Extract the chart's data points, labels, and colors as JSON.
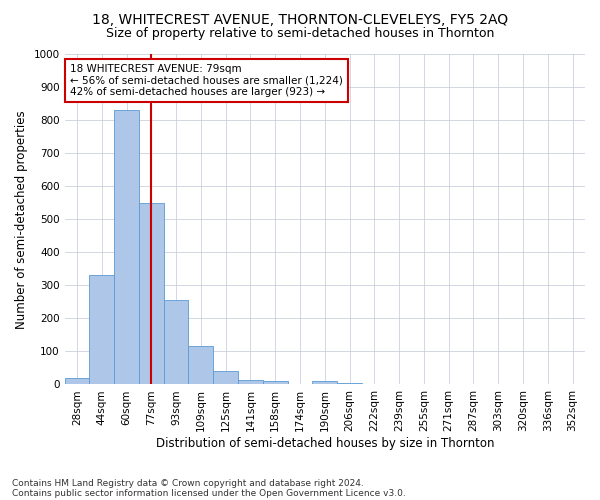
{
  "title": "18, WHITECREST AVENUE, THORNTON-CLEVELEYS, FY5 2AQ",
  "subtitle": "Size of property relative to semi-detached houses in Thornton",
  "xlabel": "Distribution of semi-detached houses by size in Thornton",
  "ylabel": "Number of semi-detached properties",
  "categories": [
    "28sqm",
    "44sqm",
    "60sqm",
    "77sqm",
    "93sqm",
    "109sqm",
    "125sqm",
    "141sqm",
    "158sqm",
    "174sqm",
    "190sqm",
    "206sqm",
    "222sqm",
    "239sqm",
    "255sqm",
    "271sqm",
    "287sqm",
    "303sqm",
    "320sqm",
    "336sqm",
    "352sqm"
  ],
  "values": [
    20,
    330,
    830,
    550,
    255,
    115,
    40,
    15,
    10,
    0,
    10,
    5,
    0,
    0,
    0,
    0,
    0,
    0,
    0,
    0,
    0
  ],
  "bar_color": "#aec6e8",
  "bar_edge_color": "#5b9bd5",
  "grid_color": "#c0c8d8",
  "vline_pos": 3.0,
  "annotation_text_line1": "18 WHITECREST AVENUE: 79sqm",
  "annotation_text_line2": "← 56% of semi-detached houses are smaller (1,224)",
  "annotation_text_line3": "42% of semi-detached houses are larger (923) →",
  "annotation_box_color": "#ffffff",
  "annotation_box_edge_color": "#cc0000",
  "vline_color": "#cc0000",
  "footnote1": "Contains HM Land Registry data © Crown copyright and database right 2024.",
  "footnote2": "Contains public sector information licensed under the Open Government Licence v3.0.",
  "ylim": [
    0,
    1000
  ],
  "title_fontsize": 10,
  "subtitle_fontsize": 9,
  "axis_label_fontsize": 8.5,
  "tick_fontsize": 7.5,
  "annotation_fontsize": 7.5,
  "footnote_fontsize": 6.5
}
